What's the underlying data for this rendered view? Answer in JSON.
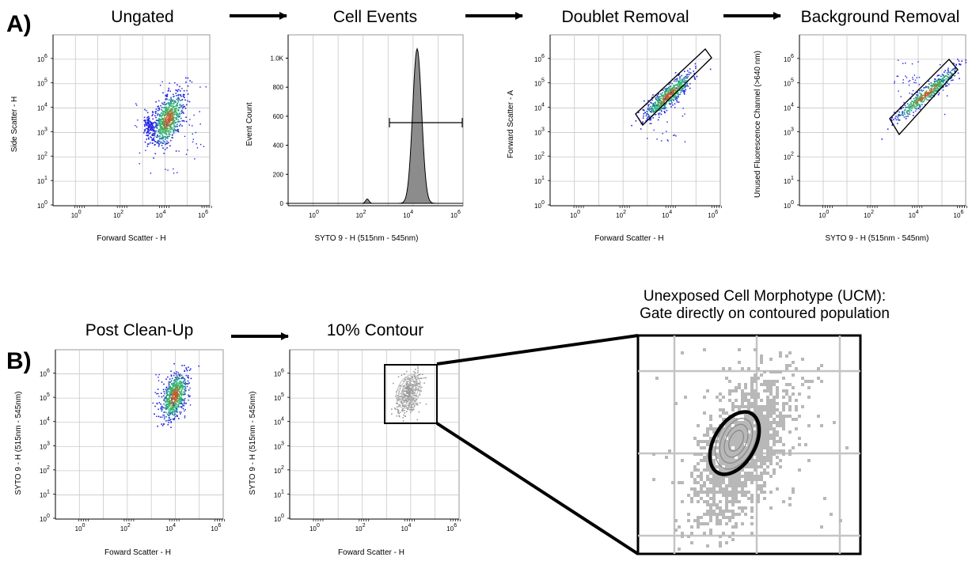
{
  "panel_a": {
    "label": "A)",
    "steps": [
      {
        "title": "Ungated",
        "ylabel": "Side Scatter - H",
        "xlabel": "Forward Scatter - H"
      },
      {
        "title": "Cell Events",
        "ylabel": "Event Count",
        "xlabel": "SYTO 9 - H (515nm - 545nm)",
        "yticks": [
          "0",
          "200",
          "400",
          "600",
          "800",
          "1.0K"
        ]
      },
      {
        "title": "Doublet Removal",
        "ylabel": "Forward Scatter - A",
        "xlabel": "Forward Scatter - H"
      },
      {
        "title": "Background Removal",
        "ylabel": "Unused Fluorescence Channel (>640 nm)",
        "xlabel": "SYTO 9 - H (515nm - 545nm)"
      }
    ]
  },
  "panel_b": {
    "label": "B)",
    "steps": [
      {
        "title": "Post Clean-Up",
        "ylabel": "SYTO 9 - H (515nm - 545nm)",
        "xlabel": "Foward Scatter - H"
      },
      {
        "title": "10% Contour",
        "ylabel": "SYTO 9 - H (515nm - 545nm)",
        "xlabel": "Foward Scatter - H"
      }
    ],
    "zoom_title_line1": "Unexposed Cell Morphotype (UCM):",
    "zoom_title_line2": "Gate directly on contoured population"
  },
  "log_tick_base": "10",
  "log_tick_exponents": [
    "0",
    "1",
    "2",
    "3",
    "4",
    "5",
    "6"
  ],
  "log_x_exponents": [
    "0",
    "2",
    "4",
    "6"
  ],
  "colors": {
    "frame": "#999999",
    "grid": "#c8c8c8",
    "histogram_fill": "#8c8c8c",
    "contour": "#9a9a9a",
    "density_low": "#1f1fe6",
    "density_mid": "#27c46b",
    "density_high": "#f53b1c"
  }
}
